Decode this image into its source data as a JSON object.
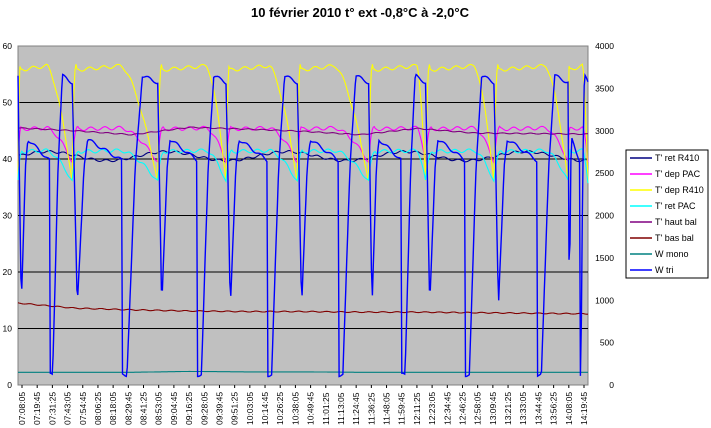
{
  "chart_data": {
    "type": "line",
    "title": "10 février 2010  t°  ext  -0,8°C à -2,0°C",
    "x_ticks": [
      "07:08:05",
      "07:19:45",
      "07:31:25",
      "07:43:05",
      "07:54:45",
      "08:06:25",
      "08:18:05",
      "08:29:45",
      "08:41:25",
      "08:53:05",
      "09:04:45",
      "09:16:25",
      "09:28:05",
      "09:39:45",
      "09:51:25",
      "10:03:05",
      "10:14:45",
      "10:26:25",
      "10:38:05",
      "10:49:45",
      "11:01:25",
      "11:13:05",
      "11:24:45",
      "11:36:25",
      "11:48:05",
      "11:59:45",
      "12:11:25",
      "12:23:05",
      "12:34:45",
      "12:46:25",
      "12:58:05",
      "13:09:45",
      "13:21:25",
      "13:33:05",
      "13:44:45",
      "13:56:25",
      "14:08:05",
      "14:19:45"
    ],
    "y_left": {
      "min": 0,
      "max": 60,
      "ticks": [
        "0",
        "10",
        "20",
        "30",
        "40",
        "50",
        "60"
      ]
    },
    "y_right": {
      "min": 0,
      "max": 4000,
      "ticks": [
        "0",
        "500",
        "1000",
        "1500",
        "2000",
        "2500",
        "3000",
        "3500",
        "4000"
      ]
    },
    "grid": "horizontal",
    "legend_position": "right",
    "series": [
      {
        "name": "T' ret R410",
        "axis": "left",
        "color": "#000080",
        "shape": "steady",
        "values": [
          40.5,
          40.5
        ]
      },
      {
        "name": "T' dep PAC",
        "axis": "left",
        "color": "#ff00ff",
        "shape": "cycle",
        "high": 45.5,
        "low": 39.5,
        "rise": 0.12
      },
      {
        "name": "T' dep R410",
        "axis": "left",
        "color": "#ffff00",
        "shape": "cycle",
        "high": 56.5,
        "low": 36,
        "rise": 0.08
      },
      {
        "name": "T' ret PAC",
        "axis": "left",
        "color": "#00ffff",
        "shape": "cycle",
        "high": 41.5,
        "low": 36,
        "rise": 0.15
      },
      {
        "name": "T' haut bal",
        "axis": "left",
        "color": "#800080",
        "shape": "drift",
        "values": [
          45.5,
          45,
          44.3,
          45.6,
          45.3,
          44.9,
          44.3,
          45.4,
          44.6,
          44.5,
          44.4
        ]
      },
      {
        "name": "T' bas bal",
        "axis": "left",
        "color": "#800000",
        "shape": "drift",
        "values": [
          14.5,
          13.6,
          13.3,
          13.1,
          13.0,
          13.0,
          12.9,
          12.9,
          12.8,
          12.7,
          12.6
        ]
      },
      {
        "name": "W mono",
        "axis": "right",
        "color": "#008080",
        "shape": "drift",
        "values": [
          150,
          150,
          150,
          160,
          155,
          155,
          150,
          150,
          150,
          150,
          150
        ]
      },
      {
        "name": "W tri",
        "axis": "right",
        "color": "#0000ff",
        "shape": "tri",
        "high": 3650,
        "low": 120
      }
    ],
    "cycles": [
      {
        "start": 0.0,
        "peak": 0.05,
        "end": 0.095
      },
      {
        "start": 0.095,
        "peak": 0.18,
        "end": 0.245
      },
      {
        "start": 0.245,
        "peak": 0.33,
        "end": 0.365
      },
      {
        "start": 0.365,
        "peak": 0.44,
        "end": 0.49
      },
      {
        "start": 0.49,
        "peak": 0.555,
        "end": 0.615
      },
      {
        "start": 0.615,
        "peak": 0.7,
        "end": 0.715
      },
      {
        "start": 0.715,
        "peak": 0.8,
        "end": 0.835
      },
      {
        "start": 0.835,
        "peak": 0.925,
        "end": 0.965
      },
      {
        "start": 0.965,
        "peak": 0.99,
        "end": 1.0
      }
    ]
  }
}
